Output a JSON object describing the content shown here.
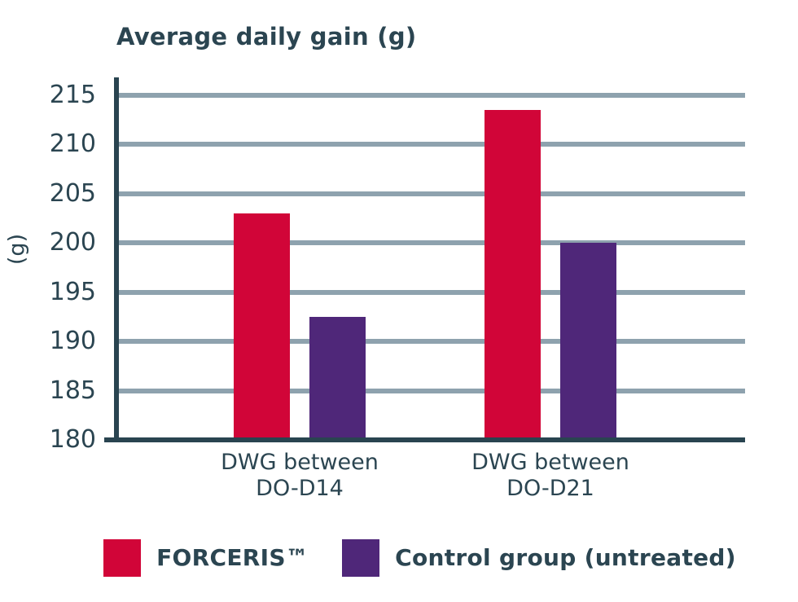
{
  "chart_data": {
    "type": "bar",
    "title": "Average daily gain (g)",
    "ylabel": "(g)",
    "categories": [
      "DWG between\nDO-D14",
      "DWG between\nDO-D21"
    ],
    "series": [
      {
        "name": "FORCERIS™",
        "color": "#D10538",
        "values": [
          203,
          213.5
        ]
      },
      {
        "name": "Control group (untreated)",
        "color": "#4F2779",
        "values": [
          192.5,
          200
        ]
      }
    ],
    "ylim": [
      180,
      215
    ],
    "yticks": [
      215,
      210,
      205,
      200,
      195,
      190,
      185,
      180
    ],
    "ytick_step": 5,
    "grid": true,
    "legend_position": "bottom",
    "axis_color": "#294450",
    "grid_color": "#8EA2AE",
    "text_color": "#2B4551"
  }
}
